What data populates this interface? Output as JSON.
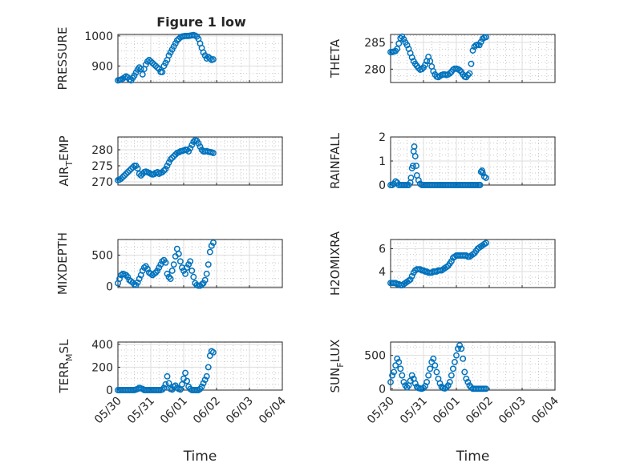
{
  "figure": {
    "title": "Figure 1 low",
    "marker_color": "#0072bd"
  },
  "chart_data": [
    {
      "type": "scatter",
      "ylabel": "PRESSURE",
      "xlabel": "",
      "grid": true,
      "xlim": [
        "05/30",
        "06/04"
      ],
      "xticks": [
        "05/30",
        "05/31",
        "06/01",
        "06/02",
        "06/03",
        "06/04"
      ],
      "ylim": [
        845,
        1005
      ],
      "yticks": [
        900,
        1000
      ],
      "x": [
        0.0,
        0.05,
        0.1,
        0.15,
        0.2,
        0.25,
        0.3,
        0.35,
        0.4,
        0.45,
        0.5,
        0.55,
        0.6,
        0.65,
        0.7,
        0.75,
        0.8,
        0.85,
        0.9,
        0.95,
        1.0,
        1.05,
        1.1,
        1.15,
        1.2,
        1.25,
        1.3,
        1.35,
        1.4,
        1.45,
        1.5,
        1.55,
        1.6,
        1.65,
        1.7,
        1.75,
        1.8,
        1.85,
        1.9,
        1.95,
        2.0,
        2.05,
        2.1,
        2.15,
        2.2,
        2.25,
        2.3,
        2.35,
        2.4,
        2.45,
        2.5,
        2.55,
        2.6,
        2.65,
        2.7,
        2.75,
        2.8,
        2.85,
        2.9
      ],
      "y": [
        852,
        853,
        855,
        858,
        862,
        865,
        862,
        855,
        852,
        860,
        868,
        878,
        888,
        895,
        890,
        872,
        890,
        905,
        915,
        920,
        915,
        910,
        905,
        900,
        895,
        890,
        880,
        880,
        900,
        910,
        920,
        935,
        945,
        955,
        965,
        975,
        985,
        990,
        995,
        998,
        999,
        1000,
        1000,
        1000,
        1001,
        1002,
        1003,
        1001,
        998,
        990,
        975,
        960,
        945,
        935,
        925,
        930,
        925,
        920,
        922
      ]
    },
    {
      "type": "scatter",
      "ylabel": "THETA",
      "xlabel": "",
      "grid": true,
      "xlim": [
        "05/30",
        "06/04"
      ],
      "xticks": [
        "05/30",
        "05/31",
        "06/01",
        "06/02",
        "06/03",
        "06/04"
      ],
      "ylim": [
        277.5,
        286.5
      ],
      "yticks": [
        280,
        285
      ],
      "x": [
        0.0,
        0.05,
        0.1,
        0.15,
        0.2,
        0.25,
        0.3,
        0.35,
        0.4,
        0.45,
        0.5,
        0.55,
        0.6,
        0.65,
        0.7,
        0.75,
        0.8,
        0.85,
        0.9,
        0.95,
        1.0,
        1.05,
        1.1,
        1.15,
        1.2,
        1.25,
        1.3,
        1.35,
        1.4,
        1.45,
        1.5,
        1.55,
        1.6,
        1.65,
        1.7,
        1.75,
        1.8,
        1.85,
        1.9,
        1.95,
        2.0,
        2.05,
        2.1,
        2.15,
        2.2,
        2.25,
        2.3,
        2.35,
        2.4,
        2.45,
        2.5,
        2.55,
        2.6,
        2.65,
        2.7,
        2.75,
        2.8,
        2.85,
        2.9
      ],
      "y": [
        283.2,
        283.2,
        283.3,
        283.4,
        283.8,
        284.8,
        285.8,
        286.1,
        285.6,
        285.0,
        284.5,
        283.8,
        283.0,
        282.2,
        281.5,
        281.0,
        280.6,
        280.2,
        279.9,
        280.0,
        280.3,
        280.8,
        281.5,
        282.3,
        281.5,
        280.5,
        279.6,
        279.0,
        278.6,
        278.5,
        278.7,
        278.9,
        279.0,
        279.0,
        278.9,
        279.0,
        279.2,
        279.5,
        279.9,
        280.1,
        280.1,
        280.0,
        279.8,
        279.5,
        279.0,
        278.6,
        278.5,
        278.9,
        279.2,
        281.0,
        283.5,
        284.2,
        284.5,
        284.6,
        284.5,
        285.1,
        285.7,
        285.9,
        286.0
      ]
    },
    {
      "type": "scatter",
      "ylabel": "AIR_TEMP",
      "xlabel": "",
      "grid": true,
      "xlim": [
        "05/30",
        "06/04"
      ],
      "xticks": [
        "05/30",
        "05/31",
        "06/01",
        "06/02",
        "06/03",
        "06/04"
      ],
      "ylim": [
        269,
        284
      ],
      "yticks": [
        270,
        275,
        280
      ],
      "x": [
        0.0,
        0.05,
        0.1,
        0.15,
        0.2,
        0.25,
        0.3,
        0.35,
        0.4,
        0.45,
        0.5,
        0.55,
        0.6,
        0.65,
        0.7,
        0.75,
        0.8,
        0.85,
        0.9,
        0.95,
        1.0,
        1.05,
        1.1,
        1.15,
        1.2,
        1.25,
        1.3,
        1.35,
        1.4,
        1.45,
        1.5,
        1.55,
        1.6,
        1.65,
        1.7,
        1.75,
        1.8,
        1.85,
        1.9,
        1.95,
        2.0,
        2.05,
        2.1,
        2.15,
        2.2,
        2.25,
        2.3,
        2.35,
        2.4,
        2.45,
        2.5,
        2.55,
        2.6,
        2.65,
        2.7,
        2.75,
        2.8,
        2.85,
        2.9
      ],
      "y": [
        270.5,
        270.7,
        271.0,
        271.5,
        272.0,
        272.5,
        273.0,
        273.5,
        274.0,
        274.5,
        275.0,
        275.0,
        274.2,
        272.5,
        272.0,
        272.5,
        273.0,
        273.2,
        273.0,
        272.8,
        272.5,
        272.3,
        272.4,
        272.8,
        273.0,
        272.5,
        272.8,
        273.0,
        273.5,
        274.0,
        275.0,
        276.0,
        277.0,
        277.5,
        278.0,
        278.5,
        279.0,
        279.2,
        279.5,
        279.6,
        279.8,
        280.0,
        280.0,
        279.5,
        280.5,
        281.5,
        282.5,
        283.0,
        282.8,
        282.0,
        281.0,
        280.0,
        279.5,
        279.5,
        279.6,
        279.4,
        279.3,
        279.2,
        279.0
      ]
    },
    {
      "type": "scatter",
      "ylabel": "RAINFALL",
      "xlabel": "",
      "grid": true,
      "xlim": [
        "05/30",
        "06/04"
      ],
      "xticks": [
        "05/30",
        "05/31",
        "06/01",
        "06/02",
        "06/03",
        "06/04"
      ],
      "ylim": [
        0,
        2
      ],
      "yticks": [
        0,
        1,
        2
      ],
      "x": [
        0.0,
        0.05,
        0.1,
        0.15,
        0.2,
        0.25,
        0.3,
        0.35,
        0.4,
        0.45,
        0.5,
        0.55,
        0.6,
        0.62,
        0.65,
        0.68,
        0.7,
        0.72,
        0.75,
        0.78,
        0.8,
        0.85,
        0.9,
        0.95,
        1.0,
        1.05,
        1.1,
        1.15,
        1.2,
        1.25,
        1.3,
        1.35,
        1.4,
        1.45,
        1.5,
        1.55,
        1.6,
        1.65,
        1.7,
        1.75,
        1.8,
        1.85,
        1.9,
        1.95,
        2.0,
        2.05,
        2.1,
        2.15,
        2.2,
        2.25,
        2.3,
        2.35,
        2.4,
        2.45,
        2.5,
        2.55,
        2.6,
        2.65,
        2.7,
        2.72,
        2.75,
        2.78,
        2.8,
        2.85,
        2.9
      ],
      "y": [
        0.0,
        0.0,
        0.05,
        0.15,
        0.1,
        0.0,
        0.0,
        0.0,
        0.0,
        0.0,
        0.0,
        0.0,
        0.1,
        0.3,
        0.7,
        0.8,
        1.4,
        1.6,
        1.2,
        0.8,
        0.4,
        0.2,
        0.05,
        0.0,
        0.0,
        0.0,
        0.0,
        0.0,
        0.0,
        0.0,
        0.0,
        0.0,
        0.0,
        0.0,
        0.0,
        0.0,
        0.0,
        0.0,
        0.0,
        0.0,
        0.0,
        0.0,
        0.0,
        0.0,
        0.0,
        0.0,
        0.0,
        0.0,
        0.0,
        0.0,
        0.0,
        0.0,
        0.0,
        0.0,
        0.0,
        0.0,
        0.0,
        0.0,
        0.0,
        0.0,
        0.55,
        0.6,
        0.5,
        0.35,
        0.3
      ]
    },
    {
      "type": "scatter",
      "ylabel": "MIXDEPTH",
      "xlabel": "",
      "grid": true,
      "xlim": [
        "05/30",
        "06/04"
      ],
      "xticks": [
        "05/30",
        "05/31",
        "06/01",
        "06/02",
        "06/03",
        "06/04"
      ],
      "ylim": [
        -20,
        750
      ],
      "yticks": [
        0,
        500
      ],
      "x": [
        0.0,
        0.05,
        0.1,
        0.15,
        0.2,
        0.25,
        0.3,
        0.35,
        0.4,
        0.45,
        0.5,
        0.55,
        0.6,
        0.65,
        0.7,
        0.75,
        0.8,
        0.85,
        0.9,
        0.95,
        1.0,
        1.05,
        1.1,
        1.15,
        1.2,
        1.25,
        1.3,
        1.35,
        1.4,
        1.45,
        1.5,
        1.55,
        1.6,
        1.65,
        1.7,
        1.75,
        1.8,
        1.85,
        1.9,
        1.95,
        2.0,
        2.05,
        2.1,
        2.15,
        2.2,
        2.25,
        2.3,
        2.35,
        2.4,
        2.45,
        2.5,
        2.55,
        2.6,
        2.65,
        2.7,
        2.75,
        2.8,
        2.85,
        2.9
      ],
      "y": [
        50,
        120,
        180,
        200,
        190,
        180,
        150,
        100,
        80,
        60,
        30,
        20,
        60,
        120,
        180,
        250,
        300,
        320,
        280,
        220,
        200,
        180,
        200,
        220,
        250,
        300,
        350,
        400,
        420,
        380,
        200,
        150,
        120,
        250,
        350,
        480,
        600,
        520,
        400,
        300,
        250,
        200,
        300,
        350,
        400,
        250,
        150,
        50,
        20,
        10,
        10,
        30,
        50,
        100,
        200,
        350,
        550,
        650,
        700
      ]
    },
    {
      "type": "scatter",
      "ylabel": "H2OMIXRA",
      "xlabel": "",
      "grid": true,
      "xlim": [
        "05/30",
        "06/04"
      ],
      "xticks": [
        "05/30",
        "05/31",
        "06/01",
        "06/02",
        "06/03",
        "06/04"
      ],
      "ylim": [
        2.6,
        6.8
      ],
      "yticks": [
        4,
        6
      ],
      "x": [
        0.0,
        0.05,
        0.1,
        0.15,
        0.2,
        0.25,
        0.3,
        0.35,
        0.4,
        0.45,
        0.5,
        0.55,
        0.6,
        0.65,
        0.7,
        0.75,
        0.8,
        0.85,
        0.9,
        0.95,
        1.0,
        1.05,
        1.1,
        1.15,
        1.2,
        1.25,
        1.3,
        1.35,
        1.4,
        1.45,
        1.5,
        1.55,
        1.6,
        1.65,
        1.7,
        1.75,
        1.8,
        1.85,
        1.9,
        1.95,
        2.0,
        2.05,
        2.1,
        2.15,
        2.2,
        2.25,
        2.3,
        2.35,
        2.4,
        2.45,
        2.5,
        2.55,
        2.6,
        2.65,
        2.7,
        2.75,
        2.8,
        2.85,
        2.9
      ],
      "y": [
        3.0,
        3.0,
        3.0,
        3.0,
        2.9,
        2.9,
        2.8,
        2.8,
        2.9,
        3.0,
        3.1,
        3.2,
        3.3,
        3.6,
        3.9,
        4.1,
        4.2,
        4.2,
        4.2,
        4.1,
        4.1,
        4.0,
        4.0,
        3.9,
        3.9,
        3.9,
        4.0,
        4.0,
        4.0,
        4.1,
        4.1,
        4.1,
        4.2,
        4.3,
        4.4,
        4.5,
        4.7,
        4.9,
        5.2,
        5.3,
        5.4,
        5.4,
        5.4,
        5.4,
        5.4,
        5.4,
        5.4,
        5.3,
        5.3,
        5.4,
        5.5,
        5.6,
        5.8,
        6.0,
        6.1,
        6.2,
        6.3,
        6.4,
        6.5
      ]
    },
    {
      "type": "scatter",
      "ylabel": "TERR_MSL",
      "xlabel": "Time",
      "grid": true,
      "xlim": [
        "05/30",
        "06/04"
      ],
      "xticks": [
        "05/30",
        "05/31",
        "06/01",
        "06/02",
        "06/03",
        "06/04"
      ],
      "ylim": [
        0,
        420
      ],
      "yticks": [
        0,
        200,
        400
      ],
      "x": [
        0.0,
        0.05,
        0.1,
        0.15,
        0.2,
        0.25,
        0.3,
        0.35,
        0.4,
        0.45,
        0.5,
        0.55,
        0.6,
        0.65,
        0.7,
        0.75,
        0.8,
        0.85,
        0.9,
        0.95,
        1.0,
        1.05,
        1.1,
        1.15,
        1.2,
        1.25,
        1.3,
        1.35,
        1.4,
        1.45,
        1.5,
        1.55,
        1.6,
        1.65,
        1.7,
        1.75,
        1.8,
        1.85,
        1.9,
        1.95,
        2.0,
        2.05,
        2.1,
        2.15,
        2.2,
        2.25,
        2.3,
        2.35,
        2.4,
        2.45,
        2.5,
        2.55,
        2.6,
        2.65,
        2.7,
        2.75,
        2.8,
        2.85,
        2.9
      ],
      "y": [
        0,
        0,
        0,
        0,
        0,
        0,
        0,
        0,
        0,
        0,
        0,
        5,
        10,
        20,
        15,
        10,
        0,
        0,
        0,
        0,
        0,
        0,
        0,
        0,
        0,
        0,
        0,
        5,
        20,
        50,
        120,
        60,
        10,
        5,
        30,
        40,
        20,
        10,
        5,
        50,
        100,
        150,
        80,
        30,
        10,
        0,
        0,
        0,
        0,
        0,
        10,
        30,
        60,
        90,
        120,
        200,
        300,
        340,
        330
      ]
    },
    {
      "type": "scatter",
      "ylabel": "SUN_FLUX",
      "xlabel": "Time",
      "grid": true,
      "xlim": [
        "05/30",
        "06/04"
      ],
      "xticks": [
        "05/30",
        "05/31",
        "06/01",
        "06/02",
        "06/03",
        "06/04"
      ],
      "ylim": [
        -20,
        700
      ],
      "yticks": [
        0,
        500
      ],
      "x": [
        0.0,
        0.05,
        0.1,
        0.15,
        0.2,
        0.25,
        0.3,
        0.35,
        0.4,
        0.45,
        0.5,
        0.55,
        0.6,
        0.65,
        0.7,
        0.75,
        0.8,
        0.85,
        0.9,
        0.95,
        1.0,
        1.05,
        1.1,
        1.15,
        1.2,
        1.25,
        1.3,
        1.35,
        1.4,
        1.45,
        1.5,
        1.55,
        1.6,
        1.65,
        1.7,
        1.75,
        1.8,
        1.85,
        1.9,
        1.95,
        2.0,
        2.05,
        2.1,
        2.15,
        2.2,
        2.25,
        2.3,
        2.35,
        2.4,
        2.45,
        2.5,
        2.55,
        2.6,
        2.65,
        2.7,
        2.75,
        2.8,
        2.85,
        2.9
      ],
      "y": [
        100,
        200,
        250,
        350,
        450,
        400,
        300,
        200,
        100,
        50,
        20,
        50,
        120,
        200,
        150,
        80,
        30,
        10,
        5,
        0,
        10,
        40,
        100,
        200,
        300,
        400,
        450,
        350,
        250,
        150,
        80,
        30,
        10,
        5,
        20,
        50,
        100,
        200,
        300,
        400,
        500,
        600,
        650,
        600,
        450,
        250,
        150,
        100,
        50,
        20,
        0,
        0,
        0,
        0,
        0,
        0,
        0,
        0,
        0
      ]
    }
  ]
}
